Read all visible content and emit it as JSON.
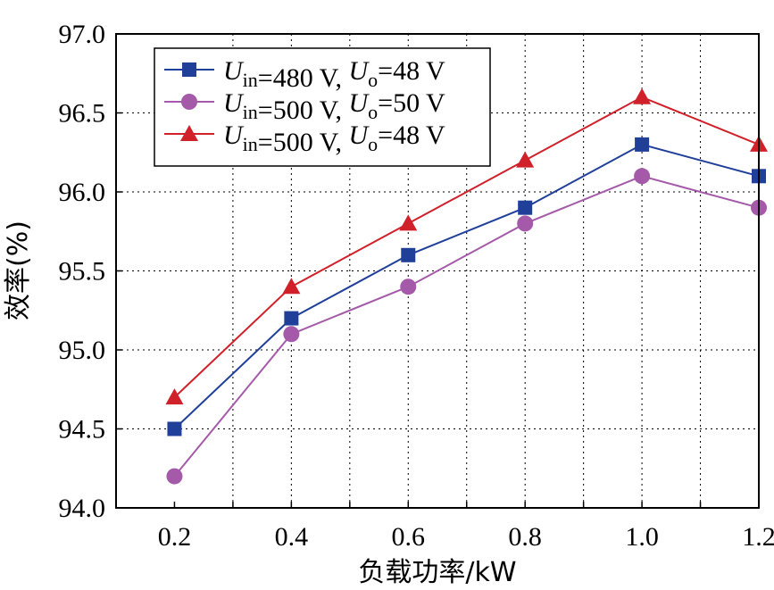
{
  "chart_data": {
    "type": "line",
    "xlabel": "负载功率/kW",
    "ylabel": "效率(%)",
    "x": [
      0.2,
      0.4,
      0.6,
      0.8,
      1.0,
      1.2
    ],
    "x_tick_labels": [
      "0.2",
      "0.4",
      "0.6",
      "0.8",
      "1.0",
      "1.2"
    ],
    "y_tick_labels": [
      "94.0",
      "94.5",
      "95.0",
      "95.5",
      "96.0",
      "96.5",
      "97.0"
    ],
    "ylim": [
      94.0,
      97.0
    ],
    "grid": true,
    "legend_position": "top-left",
    "series": [
      {
        "label_parts": {
          "v1": "U",
          "s1": "in",
          "m1": "=480 V, ",
          "v2": "U",
          "s2": "o",
          "m2": "=48 V"
        },
        "values": [
          94.5,
          95.2,
          95.6,
          95.9,
          96.3,
          96.1
        ],
        "color": "#1f3f99",
        "marker": "square"
      },
      {
        "label_parts": {
          "v1": "U",
          "s1": "in",
          "m1": "=500 V, ",
          "v2": "U",
          "s2": "o",
          "m2": "=50 V"
        },
        "values": [
          94.2,
          95.1,
          95.4,
          95.8,
          96.1,
          95.9
        ],
        "color": "#a45aa8",
        "marker": "circle"
      },
      {
        "label_parts": {
          "v1": "U",
          "s1": "in",
          "m1": "=500 V, ",
          "v2": "U",
          "s2": "o",
          "m2": "=48 V"
        },
        "values": [
          94.7,
          95.4,
          95.8,
          96.2,
          96.6,
          96.3
        ],
        "color": "#d0202a",
        "marker": "triangle"
      }
    ]
  }
}
